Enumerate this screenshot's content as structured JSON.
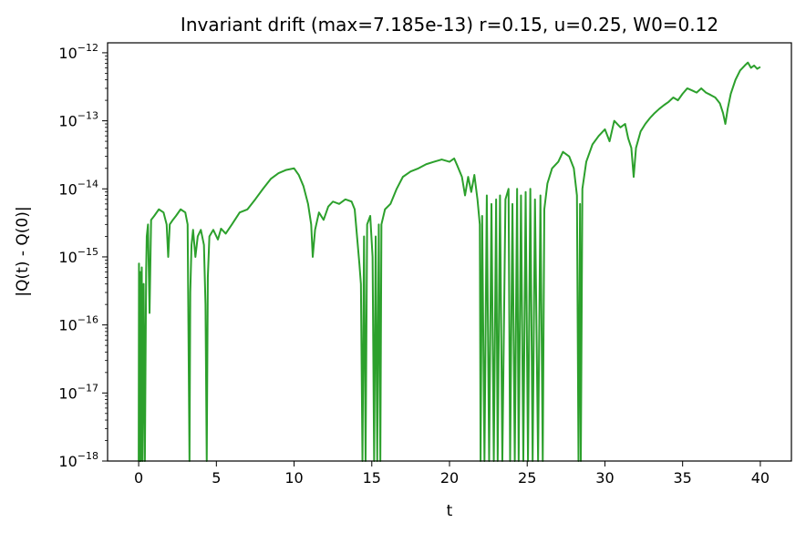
{
  "chart_data": {
    "type": "line",
    "title": "Invariant drift (max=7.185e-13)  r=0.15, u=0.25, W0=0.12",
    "xlabel": "t",
    "ylabel": "|Q(t) - Q(0)|",
    "yscale": "log",
    "xlim": [
      -2,
      42
    ],
    "ylim": [
      1e-18,
      1.4e-12
    ],
    "xticks": [
      {
        "value": 0,
        "label": "0"
      },
      {
        "value": 5,
        "label": "5"
      },
      {
        "value": 10,
        "label": "10"
      },
      {
        "value": 15,
        "label": "15"
      },
      {
        "value": 20,
        "label": "20"
      },
      {
        "value": 25,
        "label": "25"
      },
      {
        "value": 30,
        "label": "30"
      },
      {
        "value": 35,
        "label": "35"
      },
      {
        "value": 40,
        "label": "40"
      }
    ],
    "yticks": [
      {
        "exponent": -18,
        "base": "10",
        "exp": "−18"
      },
      {
        "exponent": -17,
        "base": "10",
        "exp": "−17"
      },
      {
        "exponent": -16,
        "base": "10",
        "exp": "−16"
      },
      {
        "exponent": -15,
        "base": "10",
        "exp": "−15"
      },
      {
        "exponent": -14,
        "base": "10",
        "exp": "−14"
      },
      {
        "exponent": -13,
        "base": "10",
        "exp": "−13"
      },
      {
        "exponent": -12,
        "base": "10",
        "exp": "−12"
      }
    ],
    "grid": false,
    "series": [
      {
        "color": "#2ca02c",
        "points": [
          [
            0.0,
            1e-18
          ],
          [
            0.02,
            8e-16
          ],
          [
            0.06,
            1e-18
          ],
          [
            0.1,
            6e-16
          ],
          [
            0.14,
            1e-18
          ],
          [
            0.2,
            7e-16
          ],
          [
            0.25,
            1e-18
          ],
          [
            0.32,
            4e-16
          ],
          [
            0.4,
            1e-18
          ],
          [
            0.48,
            6e-16
          ],
          [
            0.52,
            2e-15
          ],
          [
            0.6,
            3e-15
          ],
          [
            0.7,
            1.5e-16
          ],
          [
            0.8,
            3.5e-15
          ],
          [
            1.0,
            4e-15
          ],
          [
            1.3,
            5e-15
          ],
          [
            1.6,
            4.5e-15
          ],
          [
            1.8,
            3e-15
          ],
          [
            1.9,
            1e-15
          ],
          [
            2.0,
            3e-15
          ],
          [
            2.2,
            3.5e-15
          ],
          [
            2.4,
            4e-15
          ],
          [
            2.7,
            5e-15
          ],
          [
            3.0,
            4.5e-15
          ],
          [
            3.15,
            3e-15
          ],
          [
            3.2,
            1e-16
          ],
          [
            3.27,
            1e-18
          ],
          [
            3.32,
            3e-16
          ],
          [
            3.4,
            1.5e-15
          ],
          [
            3.5,
            2.5e-15
          ],
          [
            3.65,
            1e-15
          ],
          [
            3.8,
            2e-15
          ],
          [
            4.0,
            2.5e-15
          ],
          [
            4.2,
            1.5e-15
          ],
          [
            4.3,
            2e-16
          ],
          [
            4.38,
            1e-18
          ],
          [
            4.45,
            5e-16
          ],
          [
            4.55,
            2e-15
          ],
          [
            4.8,
            2.5e-15
          ],
          [
            5.1,
            1.8e-15
          ],
          [
            5.3,
            2.6e-15
          ],
          [
            5.6,
            2.2e-15
          ],
          [
            6.0,
            3e-15
          ],
          [
            6.5,
            4.5e-15
          ],
          [
            7.0,
            5e-15
          ],
          [
            7.5,
            7e-15
          ],
          [
            8.0,
            1e-14
          ],
          [
            8.5,
            1.4e-14
          ],
          [
            9.0,
            1.7e-14
          ],
          [
            9.5,
            1.9e-14
          ],
          [
            10.0,
            2e-14
          ],
          [
            10.3,
            1.6e-14
          ],
          [
            10.6,
            1.1e-14
          ],
          [
            10.9,
            6e-15
          ],
          [
            11.1,
            3e-15
          ],
          [
            11.2,
            1e-15
          ],
          [
            11.35,
            2.5e-15
          ],
          [
            11.6,
            4.5e-15
          ],
          [
            11.9,
            3.5e-15
          ],
          [
            12.2,
            5.5e-15
          ],
          [
            12.5,
            6.5e-15
          ],
          [
            12.9,
            6e-15
          ],
          [
            13.3,
            7e-15
          ],
          [
            13.7,
            6.5e-15
          ],
          [
            13.9,
            5e-15
          ],
          [
            14.05,
            2e-15
          ],
          [
            14.2,
            8e-16
          ],
          [
            14.3,
            4e-16
          ],
          [
            14.4,
            1e-18
          ],
          [
            14.5,
            2e-15
          ],
          [
            14.6,
            1e-18
          ],
          [
            14.7,
            3e-15
          ],
          [
            14.9,
            4e-15
          ],
          [
            15.05,
            1e-15
          ],
          [
            15.15,
            1e-18
          ],
          [
            15.25,
            2e-15
          ],
          [
            15.35,
            1e-18
          ],
          [
            15.45,
            3e-15
          ],
          [
            15.55,
            1e-18
          ],
          [
            15.62,
            3e-15
          ],
          [
            15.85,
            5e-15
          ],
          [
            16.2,
            6e-15
          ],
          [
            16.6,
            1e-14
          ],
          [
            17.0,
            1.5e-14
          ],
          [
            17.5,
            1.8e-14
          ],
          [
            18.0,
            2e-14
          ],
          [
            18.5,
            2.3e-14
          ],
          [
            19.0,
            2.5e-14
          ],
          [
            19.5,
            2.7e-14
          ],
          [
            20.0,
            2.5e-14
          ],
          [
            20.3,
            2.8e-14
          ],
          [
            20.5,
            2.2e-14
          ],
          [
            20.8,
            1.5e-14
          ],
          [
            21.0,
            8e-15
          ],
          [
            21.2,
            1.5e-14
          ],
          [
            21.4,
            9e-15
          ],
          [
            21.6,
            1.6e-14
          ],
          [
            21.8,
            7e-15
          ],
          [
            21.95,
            3e-15
          ],
          [
            22.0,
            1e-18
          ],
          [
            22.1,
            4e-15
          ],
          [
            22.25,
            1e-18
          ],
          [
            22.4,
            8e-15
          ],
          [
            22.55,
            1e-18
          ],
          [
            22.7,
            6e-15
          ],
          [
            22.85,
            1e-18
          ],
          [
            23.0,
            7e-15
          ],
          [
            23.1,
            1e-18
          ],
          [
            23.25,
            8e-15
          ],
          [
            23.4,
            1e-18
          ],
          [
            23.6,
            7e-15
          ],
          [
            23.8,
            1e-14
          ],
          [
            23.9,
            1e-18
          ],
          [
            24.05,
            6e-15
          ],
          [
            24.2,
            1e-18
          ],
          [
            24.35,
            1e-14
          ],
          [
            24.45,
            1e-18
          ],
          [
            24.6,
            8e-15
          ],
          [
            24.75,
            1e-18
          ],
          [
            24.9,
            9e-15
          ],
          [
            25.05,
            1e-18
          ],
          [
            25.2,
            1e-14
          ],
          [
            25.35,
            1e-18
          ],
          [
            25.5,
            7e-15
          ],
          [
            25.7,
            1e-18
          ],
          [
            25.85,
            8e-15
          ],
          [
            26.0,
            1e-18
          ],
          [
            26.1,
            5e-15
          ],
          [
            26.3,
            1.2e-14
          ],
          [
            26.6,
            2e-14
          ],
          [
            27.0,
            2.5e-14
          ],
          [
            27.3,
            3.5e-14
          ],
          [
            27.7,
            3e-14
          ],
          [
            28.0,
            2e-14
          ],
          [
            28.2,
            8e-15
          ],
          [
            28.3,
            1e-18
          ],
          [
            28.4,
            6e-15
          ],
          [
            28.45,
            1e-18
          ],
          [
            28.55,
            1e-14
          ],
          [
            28.8,
            2.5e-14
          ],
          [
            29.2,
            4.5e-14
          ],
          [
            29.6,
            6e-14
          ],
          [
            30.0,
            7.5e-14
          ],
          [
            30.3,
            5e-14
          ],
          [
            30.6,
            1e-13
          ],
          [
            31.0,
            8e-14
          ],
          [
            31.3,
            9e-14
          ],
          [
            31.5,
            5.5e-14
          ],
          [
            31.7,
            4e-14
          ],
          [
            31.85,
            1.5e-14
          ],
          [
            32.0,
            4e-14
          ],
          [
            32.3,
            7e-14
          ],
          [
            32.6,
            9e-14
          ],
          [
            32.9,
            1.1e-13
          ],
          [
            33.2,
            1.3e-13
          ],
          [
            33.5,
            1.5e-13
          ],
          [
            33.8,
            1.7e-13
          ],
          [
            34.1,
            1.9e-13
          ],
          [
            34.4,
            2.2e-13
          ],
          [
            34.7,
            2e-13
          ],
          [
            35.0,
            2.5e-13
          ],
          [
            35.3,
            3e-13
          ],
          [
            35.6,
            2.8e-13
          ],
          [
            35.9,
            2.6e-13
          ],
          [
            36.2,
            3e-13
          ],
          [
            36.5,
            2.6e-13
          ],
          [
            36.8,
            2.4e-13
          ],
          [
            37.1,
            2.2e-13
          ],
          [
            37.4,
            1.8e-13
          ],
          [
            37.6,
            1.3e-13
          ],
          [
            37.75,
            9e-14
          ],
          [
            37.9,
            1.5e-13
          ],
          [
            38.1,
            2.5e-13
          ],
          [
            38.4,
            4e-13
          ],
          [
            38.7,
            5.5e-13
          ],
          [
            39.0,
            6.5e-13
          ],
          [
            39.2,
            7.185e-13
          ],
          [
            39.4,
            6e-13
          ],
          [
            39.6,
            6.5e-13
          ],
          [
            39.8,
            5.8e-13
          ],
          [
            40.0,
            6.2e-13
          ]
        ]
      }
    ]
  }
}
